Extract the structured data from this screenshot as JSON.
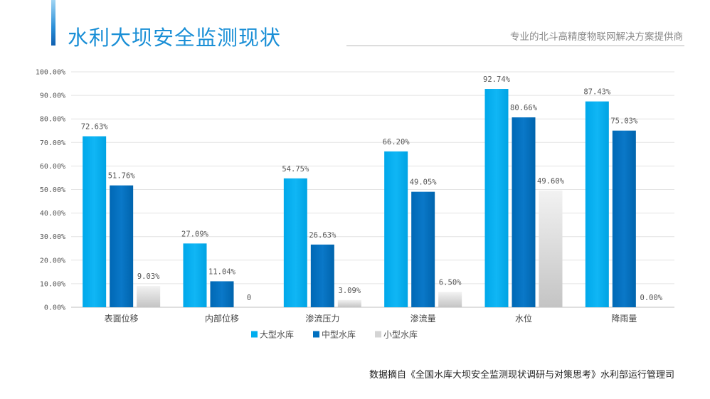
{
  "header": {
    "title": "水利大坝安全监测现状",
    "tagline": "专业的北斗高精度物联网解决方案提供商"
  },
  "footer": {
    "source": "数据摘自《全国水库大坝安全监测现状调研与对策思考》水利部运行管理司"
  },
  "chart_data": {
    "type": "bar",
    "categories": [
      "表面位移",
      "内部位移",
      "渗流压力",
      "渗流量",
      "水位",
      "降雨量"
    ],
    "series": [
      {
        "name": "大型水库",
        "color": "#00aeef",
        "values": [
          72.63,
          27.09,
          54.75,
          66.2,
          92.74,
          87.43
        ],
        "labels": [
          "72.63%",
          "27.09%",
          "54.75%",
          "66.20%",
          "92.74%",
          "87.43%"
        ]
      },
      {
        "name": "中型水库",
        "color": "#0070c0",
        "values": [
          51.76,
          11.04,
          26.63,
          49.05,
          80.66,
          75.03
        ],
        "labels": [
          "51.76%",
          "11.04%",
          "26.63%",
          "49.05%",
          "80.66%",
          "75.03%"
        ]
      },
      {
        "name": "小型水库",
        "color": "#d4d4d4",
        "values": [
          9.03,
          0,
          3.09,
          6.5,
          49.6,
          0.0
        ],
        "labels": [
          "9.03%",
          "0",
          "3.09%",
          "6.50%",
          "49.60%",
          "0.00%"
        ]
      }
    ],
    "yticks": [
      "0.00%",
      "10.00%",
      "20.00%",
      "30.00%",
      "40.00%",
      "50.00%",
      "60.00%",
      "70.00%",
      "80.00%",
      "90.00%",
      "100.00%"
    ],
    "ylim": [
      0,
      100
    ],
    "grid": true,
    "legend_position": "bottom"
  }
}
